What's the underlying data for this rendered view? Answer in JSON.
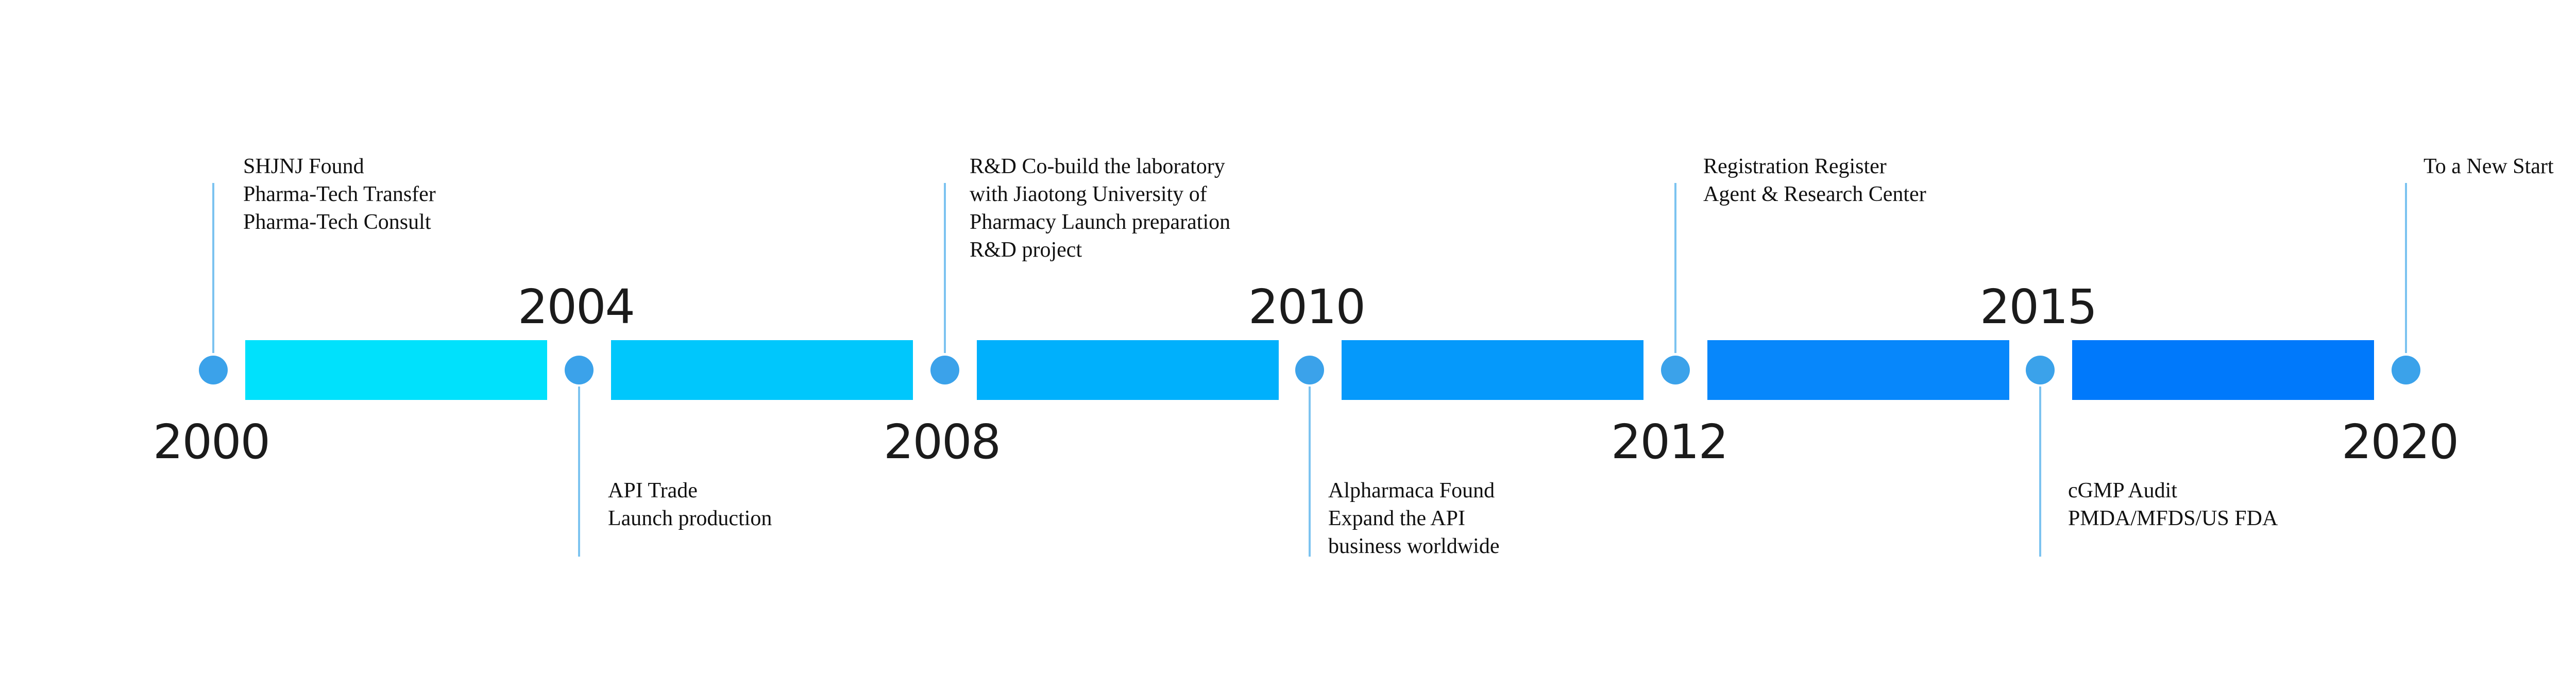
{
  "colors": {
    "dot": "#3ba2ea",
    "connector": "#7cc3f0",
    "segments": [
      "#00e1fc",
      "#00c7fc",
      "#00b0fc",
      "#0599fb",
      "#0787fb",
      "#0079fb"
    ]
  },
  "years": [
    "2000",
    "2004",
    "2008",
    "2010",
    "2012",
    "2015",
    "2020"
  ],
  "milestones": [
    {
      "lines": [
        "SHJNJ Found",
        "Pharma-Tech Transfer",
        "Pharma-Tech Consult"
      ]
    },
    {
      "lines": [
        "API Trade",
        "Launch production"
      ]
    },
    {
      "lines": [
        "R&D Co-build the laboratory",
        "with Jiaotong University of",
        "Pharmacy Launch preparation",
        "R&D project"
      ]
    },
    {
      "lines": [
        "Alpharmaca Found",
        "Expand the API",
        "business worldwide"
      ]
    },
    {
      "lines": [
        "Registration Register",
        "Agent & Research Center"
      ]
    },
    {
      "lines": [
        "cGMP Audit",
        "PMDA/MFDS/US FDA"
      ]
    },
    {
      "lines": [
        "To a New Start"
      ]
    }
  ]
}
